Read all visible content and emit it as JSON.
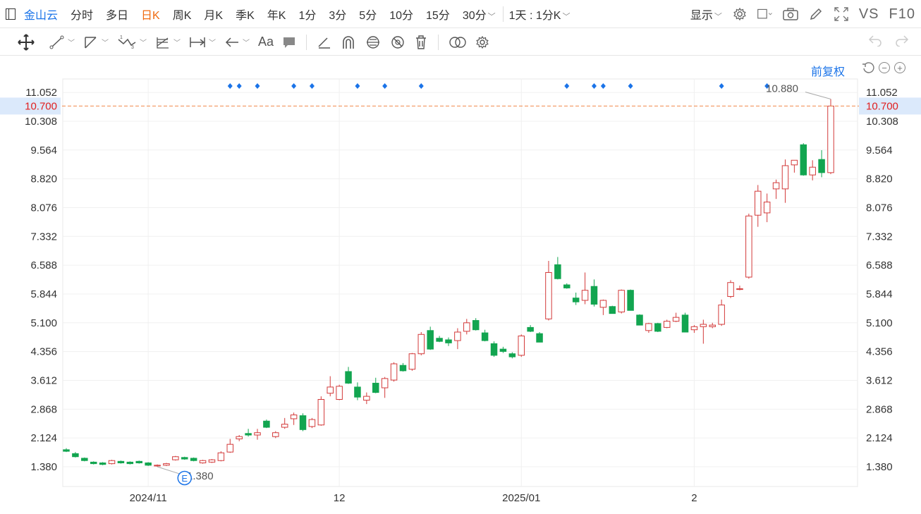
{
  "header": {
    "stock_name": "金山云",
    "periods": [
      "分时",
      "多日",
      "日K",
      "周K",
      "月K",
      "季K",
      "年K",
      "1分",
      "3分",
      "5分",
      "10分",
      "15分",
      "30分"
    ],
    "active_period": "日K",
    "combo": "1天 : 1分K",
    "display": "显示",
    "vs": "VS",
    "f10": "F10"
  },
  "adjust": {
    "label": "前复权"
  },
  "colors": {
    "up": "#d33a3a",
    "down": "#12a550",
    "accent": "#1a73e8",
    "price_line": "#f08a4b",
    "price_label": "#e02020"
  },
  "chart_data": {
    "type": "candlestick",
    "y_ticks": [
      "11.052",
      "10.308",
      "9.564",
      "8.820",
      "8.076",
      "7.332",
      "6.588",
      "5.844",
      "5.100",
      "4.356",
      "3.612",
      "2.868",
      "2.124",
      "1.380"
    ],
    "ylim": [
      0.87,
      11.4
    ],
    "x_tick_labels": [
      {
        "label": "2024/11",
        "index": 9
      },
      {
        "label": "12",
        "index": 30
      },
      {
        "label": "2025/01",
        "index": 50
      },
      {
        "label": "2",
        "index": 69
      }
    ],
    "current_price": "10.700",
    "current_price_value": 10.7,
    "max_label": "10.880",
    "min_label": "1.380",
    "event_marker": "E",
    "event_index": 13,
    "dot_indices": [
      18,
      19,
      21,
      25,
      27,
      32,
      35,
      39,
      55,
      58,
      59,
      62,
      72,
      77
    ],
    "candles": [
      [
        1.82,
        1.86,
        1.76,
        1.78
      ],
      [
        1.72,
        1.76,
        1.62,
        1.64
      ],
      [
        1.6,
        1.62,
        1.52,
        1.54
      ],
      [
        1.5,
        1.52,
        1.44,
        1.46
      ],
      [
        1.48,
        1.5,
        1.42,
        1.44
      ],
      [
        1.46,
        1.56,
        1.44,
        1.54
      ],
      [
        1.52,
        1.54,
        1.46,
        1.48
      ],
      [
        1.5,
        1.52,
        1.44,
        1.46
      ],
      [
        1.52,
        1.54,
        1.46,
        1.48
      ],
      [
        1.48,
        1.5,
        1.4,
        1.42
      ],
      [
        1.4,
        1.44,
        1.38,
        1.42
      ],
      [
        1.42,
        1.48,
        1.4,
        1.46
      ],
      [
        1.56,
        1.66,
        1.54,
        1.64
      ],
      [
        1.62,
        1.64,
        1.56,
        1.58
      ],
      [
        1.6,
        1.62,
        1.52,
        1.54
      ],
      [
        1.48,
        1.56,
        1.46,
        1.54
      ],
      [
        1.5,
        1.58,
        1.48,
        1.56
      ],
      [
        1.54,
        1.78,
        1.52,
        1.74
      ],
      [
        1.76,
        2.1,
        1.74,
        1.96
      ],
      [
        2.1,
        2.2,
        2.04,
        2.16
      ],
      [
        2.24,
        2.36,
        2.16,
        2.2
      ],
      [
        2.2,
        2.36,
        2.08,
        2.26
      ],
      [
        2.56,
        2.6,
        2.38,
        2.4
      ],
      [
        2.16,
        2.3,
        2.12,
        2.26
      ],
      [
        2.4,
        2.64,
        2.36,
        2.48
      ],
      [
        2.62,
        2.78,
        2.46,
        2.72
      ],
      [
        2.7,
        2.76,
        2.3,
        2.34
      ],
      [
        2.42,
        2.64,
        2.38,
        2.6
      ],
      [
        2.46,
        3.2,
        2.44,
        3.12
      ],
      [
        3.28,
        3.72,
        3.2,
        3.44
      ],
      [
        3.12,
        3.5,
        3.1,
        3.46
      ],
      [
        3.84,
        3.96,
        3.52,
        3.54
      ],
      [
        3.44,
        3.56,
        3.1,
        3.18
      ],
      [
        3.1,
        3.3,
        3.0,
        3.2
      ],
      [
        3.54,
        3.68,
        3.28,
        3.3
      ],
      [
        3.42,
        3.7,
        3.16,
        3.66
      ],
      [
        3.62,
        4.08,
        3.58,
        4.04
      ],
      [
        4.0,
        4.06,
        3.84,
        3.86
      ],
      [
        3.9,
        4.32,
        3.86,
        4.3
      ],
      [
        4.3,
        4.86,
        4.26,
        4.8
      ],
      [
        4.9,
        5.0,
        4.4,
        4.42
      ],
      [
        4.7,
        4.76,
        4.6,
        4.62
      ],
      [
        4.66,
        4.72,
        4.5,
        4.58
      ],
      [
        4.64,
        4.96,
        4.42,
        4.86
      ],
      [
        4.88,
        5.2,
        4.8,
        5.1
      ],
      [
        5.16,
        5.22,
        4.9,
        4.92
      ],
      [
        4.84,
        4.92,
        4.62,
        4.64
      ],
      [
        4.56,
        4.62,
        4.22,
        4.26
      ],
      [
        4.42,
        4.48,
        4.32,
        4.36
      ],
      [
        4.3,
        4.34,
        4.18,
        4.22
      ],
      [
        4.26,
        4.8,
        4.22,
        4.76
      ],
      [
        4.98,
        5.04,
        4.86,
        4.88
      ],
      [
        4.82,
        4.86,
        4.6,
        4.6
      ],
      [
        5.2,
        6.7,
        5.16,
        6.4
      ],
      [
        6.6,
        6.8,
        6.22,
        6.24
      ],
      [
        6.08,
        6.12,
        5.98,
        6.0
      ],
      [
        5.74,
        5.88,
        5.56,
        5.64
      ],
      [
        5.68,
        6.4,
        5.58,
        5.94
      ],
      [
        6.04,
        6.22,
        5.52,
        5.58
      ],
      [
        5.5,
        5.7,
        5.3,
        5.68
      ],
      [
        5.52,
        5.54,
        5.34,
        5.34
      ],
      [
        5.38,
        5.96,
        5.34,
        5.94
      ],
      [
        5.94,
        5.96,
        5.42,
        5.42
      ],
      [
        5.3,
        5.32,
        5.04,
        5.04
      ],
      [
        4.9,
        5.1,
        4.84,
        5.08
      ],
      [
        5.08,
        5.1,
        4.86,
        4.88
      ],
      [
        4.98,
        5.18,
        4.96,
        5.14
      ],
      [
        5.14,
        5.36,
        5.12,
        5.24
      ],
      [
        5.3,
        5.36,
        4.96,
        4.86
      ],
      [
        4.92,
        5.04,
        4.84,
        5.0
      ],
      [
        5.0,
        5.18,
        4.56,
        5.06
      ],
      [
        5.0,
        5.1,
        4.96,
        5.04
      ],
      [
        5.06,
        5.7,
        5.02,
        5.56
      ],
      [
        5.78,
        6.2,
        5.74,
        6.14
      ],
      [
        5.96,
        6.06,
        5.94,
        5.98
      ],
      [
        6.28,
        7.92,
        6.24,
        7.86
      ],
      [
        7.88,
        8.66,
        7.58,
        8.5
      ],
      [
        7.94,
        8.44,
        7.7,
        8.22
      ],
      [
        8.56,
        8.8,
        8.3,
        8.72
      ],
      [
        8.56,
        9.32,
        8.2,
        9.16
      ],
      [
        9.18,
        9.28,
        8.98,
        9.3
      ],
      [
        9.7,
        9.74,
        8.9,
        8.92
      ],
      [
        8.92,
        9.3,
        8.78,
        9.12
      ],
      [
        9.32,
        9.56,
        8.86,
        8.98
      ],
      [
        8.98,
        10.88,
        8.94,
        10.7
      ]
    ]
  }
}
